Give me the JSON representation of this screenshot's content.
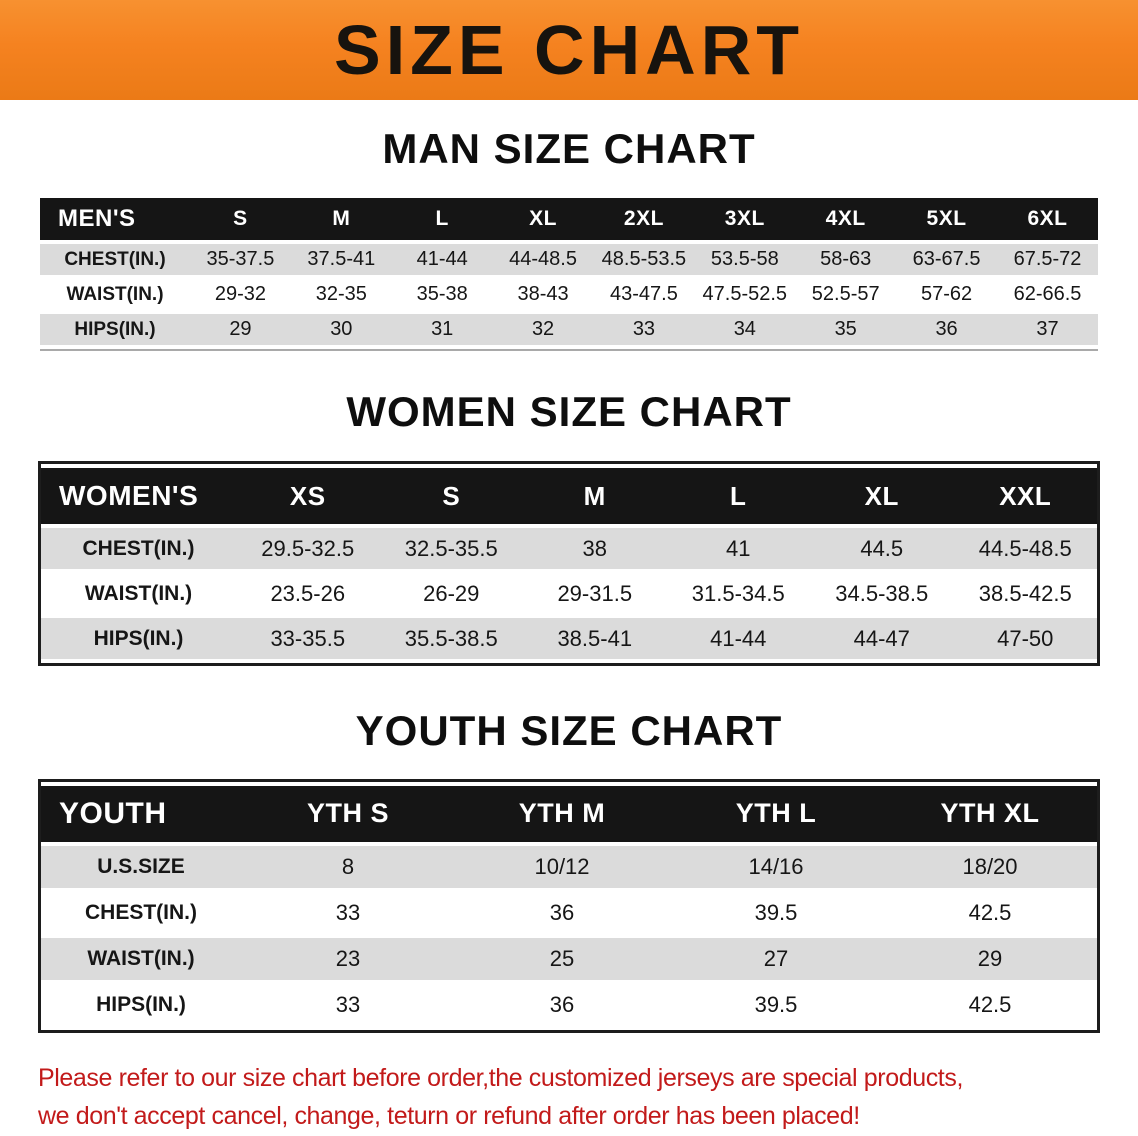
{
  "banner": {
    "title": "SIZE CHART"
  },
  "chart_data": [
    {
      "type": "table",
      "title": "MAN SIZE CHART",
      "columns": [
        "MEN'S",
        "S",
        "M",
        "L",
        "XL",
        "2XL",
        "3XL",
        "4XL",
        "5XL",
        "6XL"
      ],
      "rows": [
        [
          "CHEST(IN.)",
          "35-37.5",
          "37.5-41",
          "41-44",
          "44-48.5",
          "48.5-53.5",
          "53.5-58",
          "58-63",
          "63-67.5",
          "67.5-72"
        ],
        [
          "WAIST(IN.)",
          "29-32",
          "32-35",
          "35-38",
          "38-43",
          "43-47.5",
          "47.5-52.5",
          "52.5-57",
          "57-62",
          "62-66.5"
        ],
        [
          "HIPS(IN.)",
          "29",
          "30",
          "31",
          "32",
          "33",
          "34",
          "35",
          "36",
          "37"
        ]
      ]
    },
    {
      "type": "table",
      "title": "WOMEN SIZE CHART",
      "columns": [
        "WOMEN'S",
        "XS",
        "S",
        "M",
        "L",
        "XL",
        "XXL"
      ],
      "rows": [
        [
          "CHEST(IN.)",
          "29.5-32.5",
          "32.5-35.5",
          "38",
          "41",
          "44.5",
          "44.5-48.5"
        ],
        [
          "WAIST(IN.)",
          "23.5-26",
          "26-29",
          "29-31.5",
          "31.5-34.5",
          "34.5-38.5",
          "38.5-42.5"
        ],
        [
          "HIPS(IN.)",
          "33-35.5",
          "35.5-38.5",
          "38.5-41",
          "41-44",
          "44-47",
          "47-50"
        ]
      ]
    },
    {
      "type": "table",
      "title": "YOUTH SIZE CHART",
      "columns": [
        "YOUTH",
        "YTH S",
        "YTH M",
        "YTH L",
        "YTH XL"
      ],
      "rows": [
        [
          "U.S.SIZE",
          "8",
          "10/12",
          "14/16",
          "18/20"
        ],
        [
          "CHEST(IN.)",
          "33",
          "36",
          "39.5",
          "42.5"
        ],
        [
          "WAIST(IN.)",
          "23",
          "25",
          "27",
          "29"
        ],
        [
          "HIPS(IN.)",
          "33",
          "36",
          "39.5",
          "42.5"
        ]
      ]
    }
  ],
  "footer_note": {
    "line1": "Please refer to our size chart before order,the customized jerseys are special products,",
    "line2": "we don't accept cancel, change, teturn or refund after order has been placed!"
  },
  "colors": {
    "banner_orange": "#f58220",
    "header_black": "#151515",
    "row_shade": "#dbdbdb",
    "note_red": "#c21a1a"
  }
}
